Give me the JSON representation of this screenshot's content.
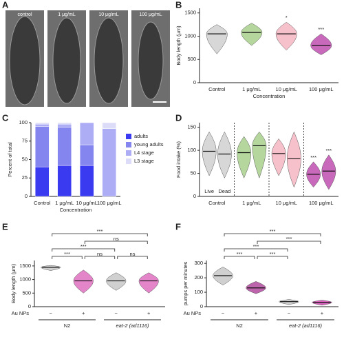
{
  "panel_a": {
    "panel_label": "A",
    "captions": [
      "control",
      "1 μg/mL",
      "10 μg/mL",
      "100 μg/mL"
    ]
  },
  "chart_data": [
    {
      "type": "violin",
      "panel_label": "B",
      "ylabel": "Body length (μm)",
      "xlabel": "Concentration",
      "categories": [
        "Control",
        "1 μg/mL",
        "10 μg/mL",
        "100 μg/mL"
      ],
      "series": [
        {
          "colors": [
            "#d0d0d0",
            "#a8d08d",
            "#f4b6c2",
            "#c04fb0"
          ],
          "values": [
            1050,
            1080,
            1050,
            800
          ],
          "lows": [
            620,
            800,
            700,
            600
          ],
          "highs": [
            1250,
            1280,
            1300,
            1050
          ]
        }
      ],
      "annotations": [
        {
          "category": 2,
          "text": "*"
        },
        {
          "category": 3,
          "text": "***"
        }
      ],
      "ylim": [
        0,
        1600
      ],
      "yticks": [
        0,
        500,
        1000,
        1500
      ]
    },
    {
      "type": "stacked_bar",
      "panel_label": "C",
      "ylabel": "Percent of total",
      "xlabel": "Concentration",
      "categories": [
        "Control",
        "1 μg/mL",
        "10 μg/mL",
        "100 μg/mL"
      ],
      "series": [
        {
          "name": "adults",
          "color": "#3a3af0",
          "values": [
            40,
            42,
            42,
            0
          ]
        },
        {
          "name": "young adults",
          "color": "#8585f0",
          "values": [
            55,
            52,
            28,
            0
          ]
        },
        {
          "name": "L4 stage",
          "color": "#adadf5",
          "values": [
            3,
            4,
            30,
            92
          ]
        },
        {
          "name": "L3 stage",
          "color": "#dcdcf8",
          "values": [
            2,
            2,
            0,
            8
          ]
        }
      ],
      "ylim": [
        0,
        100
      ],
      "yticks": [
        0,
        25,
        50,
        75,
        100
      ]
    },
    {
      "type": "violin",
      "panel_label": "D",
      "ylabel": "Food intake (%)",
      "categories": [
        "Control",
        "1 μg/mL",
        "10 μg/mL",
        "100 μg/mL"
      ],
      "series": [
        {
          "name": "Live",
          "colors": [
            "#d0d0d0",
            "#a8d08d",
            "#f4b6c2",
            "#c04fb0"
          ],
          "values": [
            98,
            95,
            93,
            48
          ],
          "lows": [
            45,
            40,
            45,
            20
          ],
          "highs": [
            140,
            130,
            125,
            75
          ]
        },
        {
          "name": "Dead",
          "colors": [
            "#d0d0d0",
            "#a8d08d",
            "#f4b6c2",
            "#c04fb0"
          ],
          "values": [
            92,
            110,
            82,
            55
          ],
          "lows": [
            40,
            40,
            20,
            15
          ],
          "highs": [
            140,
            140,
            140,
            90
          ]
        }
      ],
      "annotations": [
        {
          "category": 3,
          "series": 0,
          "text": "***"
        },
        {
          "category": 3,
          "series": 1,
          "text": "***"
        }
      ],
      "ylim": [
        0,
        160
      ],
      "yticks": [
        0,
        50,
        100,
        150
      ]
    },
    {
      "type": "violin",
      "panel_label": "E",
      "ylabel": "Body length (μm)",
      "row_label": "Au NPs",
      "categories": [
        "−",
        "+",
        "−",
        "+"
      ],
      "groups": [
        "N2",
        "eat-2 (ad1116)"
      ],
      "series": [
        {
          "colors": [
            "#c8c8c8",
            "#e070c0",
            "#c8c8c8",
            "#e070c0"
          ],
          "values": [
            1450,
            950,
            950,
            950
          ],
          "lows": [
            1330,
            500,
            600,
            500
          ],
          "highs": [
            1520,
            1350,
            1250,
            1250
          ]
        }
      ],
      "comparisons": [
        {
          "pair": [
            0,
            1
          ],
          "label": "***"
        },
        {
          "pair": [
            1,
            2
          ],
          "label": "ns"
        },
        {
          "pair": [
            2,
            3
          ],
          "label": "ns"
        },
        {
          "pair": [
            0,
            2
          ],
          "label": "***"
        },
        {
          "pair": [
            1,
            3
          ],
          "label": "ns"
        },
        {
          "pair": [
            0,
            3
          ],
          "label": "***"
        }
      ],
      "ylim": [
        0,
        1700
      ],
      "yticks": [
        0,
        500,
        1000,
        1500
      ]
    },
    {
      "type": "violin",
      "panel_label": "F",
      "ylabel": "pumps per minutes",
      "row_label": "Au NPs",
      "categories": [
        "−",
        "+",
        "−",
        "+"
      ],
      "groups": [
        "N2",
        "eat-2 (ad1116)"
      ],
      "series": [
        {
          "colors": [
            "#c8c8c8",
            "#b04a9e",
            "#c8c8c8",
            "#d048b0"
          ],
          "values": [
            215,
            130,
            35,
            30
          ],
          "lows": [
            150,
            90,
            15,
            10
          ],
          "highs": [
            275,
            175,
            50,
            45
          ]
        }
      ],
      "comparisons": [
        {
          "pair": [
            0,
            1
          ],
          "label": "***"
        },
        {
          "pair": [
            1,
            2
          ],
          "label": "***"
        },
        {
          "pair": [
            0,
            2
          ],
          "label": "***"
        },
        {
          "pair": [
            1,
            3
          ],
          "label": "***"
        },
        {
          "pair": [
            0,
            3
          ],
          "label": "***"
        }
      ],
      "ylim": [
        0,
        320
      ],
      "yticks": [
        0,
        100,
        200,
        300
      ]
    }
  ]
}
